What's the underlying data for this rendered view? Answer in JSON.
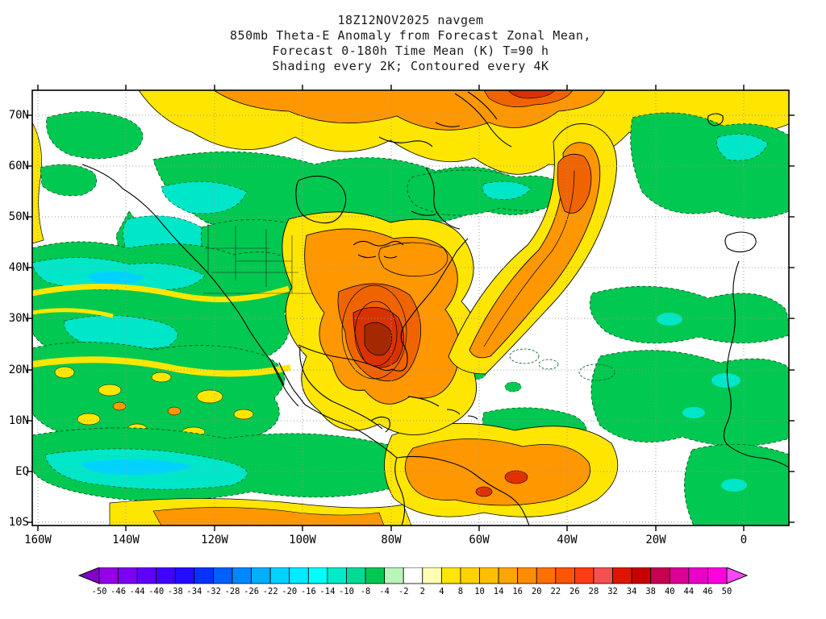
{
  "title": {
    "line1": "18Z12NOV2025 navgem",
    "line2": "850mb Theta-E Anomaly from Forecast Zonal Mean,",
    "line3": "Forecast 0-180h Time Mean (K) T=90 h",
    "line4": "Shading every 2K; Contoured every 4K"
  },
  "axes": {
    "lat_ticks": [
      "70N",
      "60N",
      "50N",
      "40N",
      "30N",
      "20N",
      "10N",
      "EQ",
      "10S"
    ],
    "lon_ticks": [
      "160W",
      "140W",
      "120W",
      "100W",
      "80W",
      "60W",
      "40W",
      "20W",
      "0"
    ]
  },
  "colorbar": {
    "tick_labels": [
      "-50",
      "-46",
      "-44",
      "-40",
      "-38",
      "-34",
      "-32",
      "-28",
      "-26",
      "-22",
      "-20",
      "-16",
      "-14",
      "-10",
      "-8",
      "-4",
      "-2",
      "2",
      "4",
      "8",
      "10",
      "14",
      "16",
      "20",
      "22",
      "26",
      "28",
      "32",
      "34",
      "38",
      "40",
      "44",
      "46",
      "50"
    ],
    "segment_colors": [
      "#9600E6",
      "#7D00F5",
      "#5F00FF",
      "#4103FF",
      "#230DFF",
      "#0532FF",
      "#005FFF",
      "#0087FF",
      "#00AFFF",
      "#00D2FF",
      "#00EBFF",
      "#00FFFA",
      "#00EBC8",
      "#00DC96",
      "#00C850",
      "#B9F5B9",
      "#FFFFFF",
      "#FFFFB4",
      "#FFE600",
      "#FFD200",
      "#FFBE00",
      "#FFA500",
      "#FF8C00",
      "#FF7000",
      "#FF5400",
      "#FF3C14",
      "#F55050",
      "#E11400",
      "#C80000",
      "#C80050",
      "#DC0096",
      "#EB00C8",
      "#FF00E1"
    ],
    "left_arrow_color": "#8200C8",
    "right_arrow_color": "#FF46FF"
  },
  "chart_data": {
    "type": "heatmap",
    "subtype": "filled_contour_map",
    "model": "navgem",
    "init_time": "18Z12NOV2025",
    "field": "850mb Theta-E Anomaly from Forecast Zonal Mean",
    "forecast_window": "Forecast 0-180h Time Mean (K) T=90 h",
    "units": "K",
    "shading_interval_K": 2,
    "contour_interval_K": 4,
    "x_axis": {
      "label": "longitude",
      "tick_labels": [
        "160W",
        "140W",
        "120W",
        "100W",
        "80W",
        "60W",
        "40W",
        "20W",
        "0"
      ],
      "range": [
        "160W",
        "10E"
      ]
    },
    "y_axis": {
      "label": "latitude",
      "tick_labels": [
        "70N",
        "60N",
        "50N",
        "40N",
        "30N",
        "20N",
        "10N",
        "EQ",
        "10S"
      ],
      "range": [
        "10S",
        "75N"
      ]
    },
    "colorbar_levels": [
      -50,
      -46,
      -44,
      -40,
      -38,
      -34,
      -32,
      -28,
      -26,
      -22,
      -20,
      -16,
      -14,
      -10,
      -8,
      -4,
      -2,
      2,
      4,
      8,
      10,
      14,
      16,
      20,
      22,
      26,
      28,
      32,
      34,
      38,
      40,
      44,
      46,
      50
    ],
    "grid": "dotted graticule every 10 deg latitude and 20 deg longitude",
    "legend_position": "bottom horizontal colorbar with arrow ends",
    "notable_features": [
      "Broad positive (warm) anomaly band, yellow to orange, across the Arctic between 60N and 75N",
      "Strong positive anomaly plume exceeding +20K (orange to dark red) over Mexico, the central/eastern United States and Gulf of Mexico",
      "Curved positive anomaly ribbon over the central North Atlantic arcing northeastward near 40W",
      "Widespread negative anomalies (-4 to -14K, green/cyan) over the North Pacific, western Canada, the subpolar North Atlantic and eastern Atlantic/NW Africa",
      "Negative anomaly band along the equatorial eastern Pacific; positive anomalies over subtropical South America and the South Atlantic"
    ]
  }
}
